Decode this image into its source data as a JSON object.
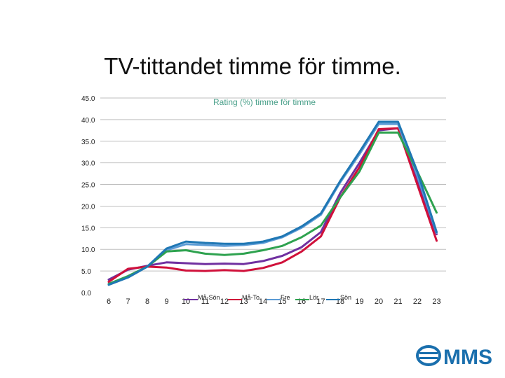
{
  "slide": {
    "title": "TV-tittandet timme för timme."
  },
  "colors": {
    "grid": "#bfbfbf",
    "title": "#4aa08a"
  },
  "logo": {
    "name": "mms-logo",
    "text": "MMS",
    "color": "#1a6fad"
  },
  "chart_data": {
    "type": "line",
    "title": "Rating (%) timme för timme",
    "xlabel": "",
    "ylabel": "",
    "x": [
      6,
      7,
      8,
      9,
      10,
      11,
      12,
      13,
      14,
      15,
      16,
      17,
      18,
      19,
      20,
      21,
      22,
      23
    ],
    "ylim": [
      0,
      45
    ],
    "yticks": [
      "0.0",
      "5.0",
      "10.0",
      "15.0",
      "20.0",
      "25.0",
      "30.0",
      "35.0",
      "40.0",
      "45.0"
    ],
    "grid": true,
    "legend_position": "bottom",
    "series": [
      {
        "name": "Må-Sön",
        "color": "#7030a0",
        "values": [
          3.0,
          5.3,
          6.2,
          7.0,
          6.8,
          6.6,
          6.7,
          6.6,
          7.3,
          8.5,
          10.5,
          14.0,
          23.0,
          30.0,
          37.5,
          38.0,
          26.0,
          13.5
        ]
      },
      {
        "name": "Må-To",
        "color": "#d0103a",
        "values": [
          2.5,
          5.5,
          6.0,
          5.8,
          5.1,
          5.0,
          5.2,
          5.0,
          5.7,
          7.0,
          9.5,
          13.0,
          22.0,
          29.0,
          37.8,
          38.0,
          25.0,
          12.0
        ]
      },
      {
        "name": "Fre",
        "color": "#5b9bd5",
        "values": [
          2.0,
          3.8,
          6.0,
          9.8,
          11.2,
          11.0,
          10.8,
          11.0,
          11.5,
          12.8,
          15.0,
          18.0,
          25.5,
          32.0,
          39.0,
          39.0,
          27.0,
          13.8
        ]
      },
      {
        "name": "Lör",
        "color": "#2ea24f",
        "values": [
          2.0,
          3.8,
          6.0,
          9.5,
          9.8,
          9.0,
          8.7,
          9.0,
          9.8,
          10.8,
          12.8,
          15.5,
          22.0,
          28.0,
          37.0,
          37.0,
          28.0,
          18.5
        ]
      },
      {
        "name": "Sön",
        "color": "#1f77b4",
        "values": [
          1.8,
          3.5,
          6.0,
          10.2,
          11.8,
          11.5,
          11.3,
          11.3,
          11.8,
          13.0,
          15.3,
          18.3,
          25.8,
          32.5,
          39.5,
          39.5,
          28.0,
          14.0
        ]
      }
    ]
  }
}
